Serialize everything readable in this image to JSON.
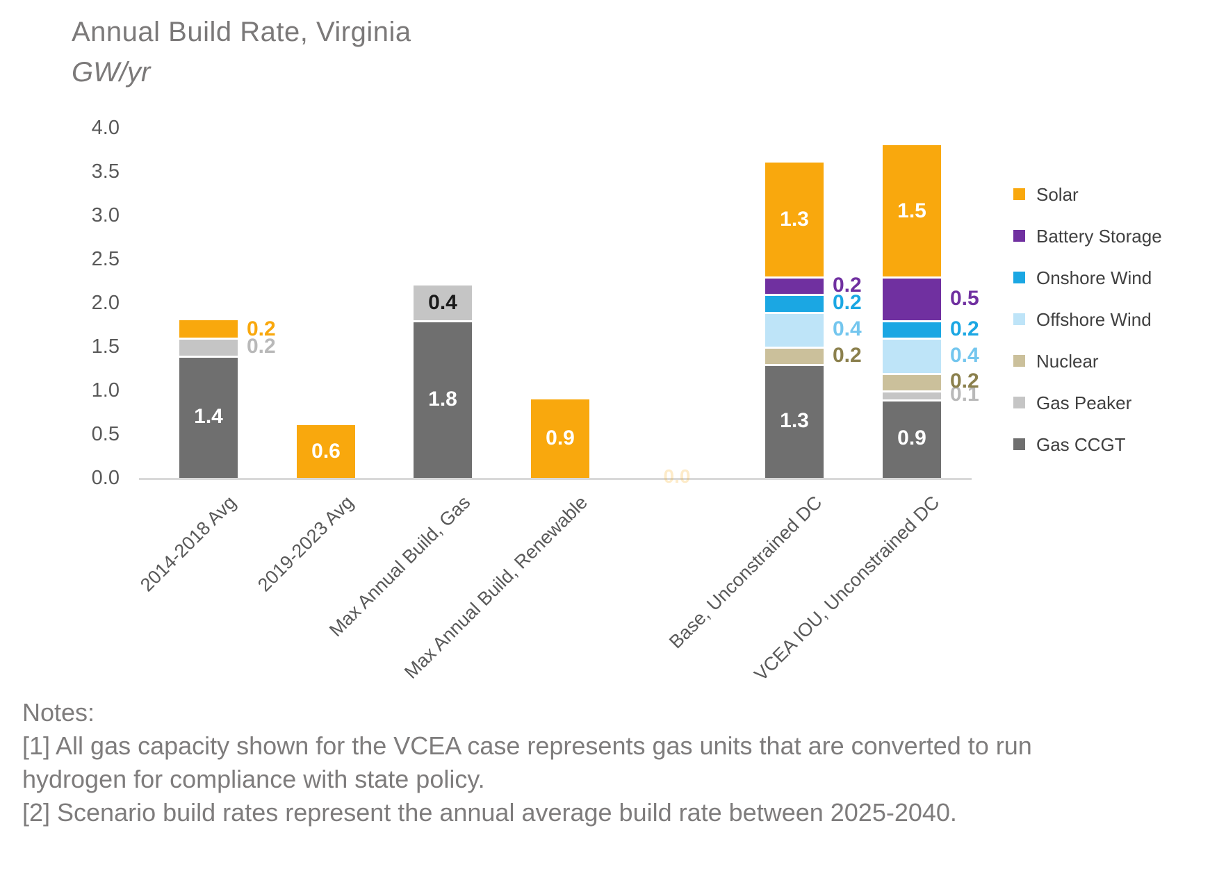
{
  "title": "Annual Build Rate, Virginia",
  "subtitle": "GW/yr",
  "notes": {
    "heading": "Notes:",
    "lines": [
      "[1] All gas capacity shown for the VCEA case represents gas units that are converted to run hydrogen for compliance with state policy.",
      "[2] Scenario build rates represent the annual average build rate between 2025-2040."
    ]
  },
  "colors": {
    "title_text": "#7b7979",
    "axis_text": "#595959",
    "axis_line": "#d9d9d9",
    "legend_text": "#404040",
    "notes_text": "#7e7c7c"
  },
  "chart_data": {
    "type": "bar",
    "stacked": true,
    "title": "Annual Build Rate, Virginia",
    "ylabel": "GW/yr",
    "ylim": [
      0,
      4
    ],
    "ytick_step": 0.5,
    "ytick_labels": [
      "0.0",
      "0.5",
      "1.0",
      "1.5",
      "2.0",
      "2.5",
      "3.0",
      "3.5",
      "4.0"
    ],
    "grid": false,
    "legend_position": "right",
    "categories": [
      "2014-2018 Avg",
      "2019-2023 Avg",
      "Max Annual Build, Gas",
      "Max Annual Build, Renewable",
      "",
      "Base, Unconstrained DC",
      "VCEA IOU, Unconstrained DC"
    ],
    "series": [
      {
        "name": "Gas CCGT",
        "color": "#6f6f6f",
        "label_in_color": "#ffffff",
        "label_out_color": "#b9b9b9",
        "values": [
          1.4,
          0,
          1.8,
          0,
          0,
          1.3,
          0.9
        ],
        "label_pos": [
          "in",
          null,
          "in",
          null,
          null,
          "in",
          "in"
        ]
      },
      {
        "name": "Gas Peaker",
        "color": "#c5c5c5",
        "label_in_color": "#1a1a1a",
        "label_out_color": "#b9b9b9",
        "values": [
          0.2,
          0,
          0.4,
          0,
          0,
          0,
          0.1
        ],
        "label_pos": [
          "out",
          null,
          "in",
          null,
          null,
          null,
          "out"
        ]
      },
      {
        "name": "Nuclear",
        "color": "#cbc09b",
        "label_in_color": "#1a1a1a",
        "label_out_color": "#8b804d",
        "values": [
          0,
          0,
          0,
          0,
          0,
          0.2,
          0.2
        ],
        "label_pos": [
          null,
          null,
          null,
          null,
          null,
          "out",
          "out"
        ]
      },
      {
        "name": "Offshore Wind",
        "color": "#bee4f8",
        "label_in_color": "#1a1a1a",
        "label_out_color": "#74c6ee",
        "values": [
          0,
          0,
          0,
          0,
          0,
          0.4,
          0.4
        ],
        "label_pos": [
          null,
          null,
          null,
          null,
          null,
          "out",
          "out"
        ]
      },
      {
        "name": "Onshore Wind",
        "color": "#1ba7e3",
        "label_in_color": "#ffffff",
        "label_out_color": "#1ba7e3",
        "values": [
          0,
          0,
          0,
          0,
          0,
          0.2,
          0.2
        ],
        "label_pos": [
          null,
          null,
          null,
          null,
          null,
          "out",
          "out"
        ]
      },
      {
        "name": "Battery Storage",
        "color": "#7030a0",
        "label_in_color": "#ffffff",
        "label_out_color": "#7030a0",
        "values": [
          0,
          0,
          0,
          0,
          0,
          0.2,
          0.5
        ],
        "label_pos": [
          null,
          null,
          null,
          null,
          null,
          "out",
          "out"
        ]
      },
      {
        "name": "Solar",
        "color": "#f9a80d",
        "label_in_color": "#ffffff",
        "label_out_color": "#f9a80d",
        "values": [
          0.2,
          0.6,
          0,
          0.9,
          0,
          1.3,
          1.5
        ],
        "label_pos": [
          "out",
          "in",
          null,
          "in",
          null,
          "in",
          "in"
        ]
      }
    ],
    "faint_zero_label": {
      "text": "0.0",
      "category_index": 4
    }
  }
}
